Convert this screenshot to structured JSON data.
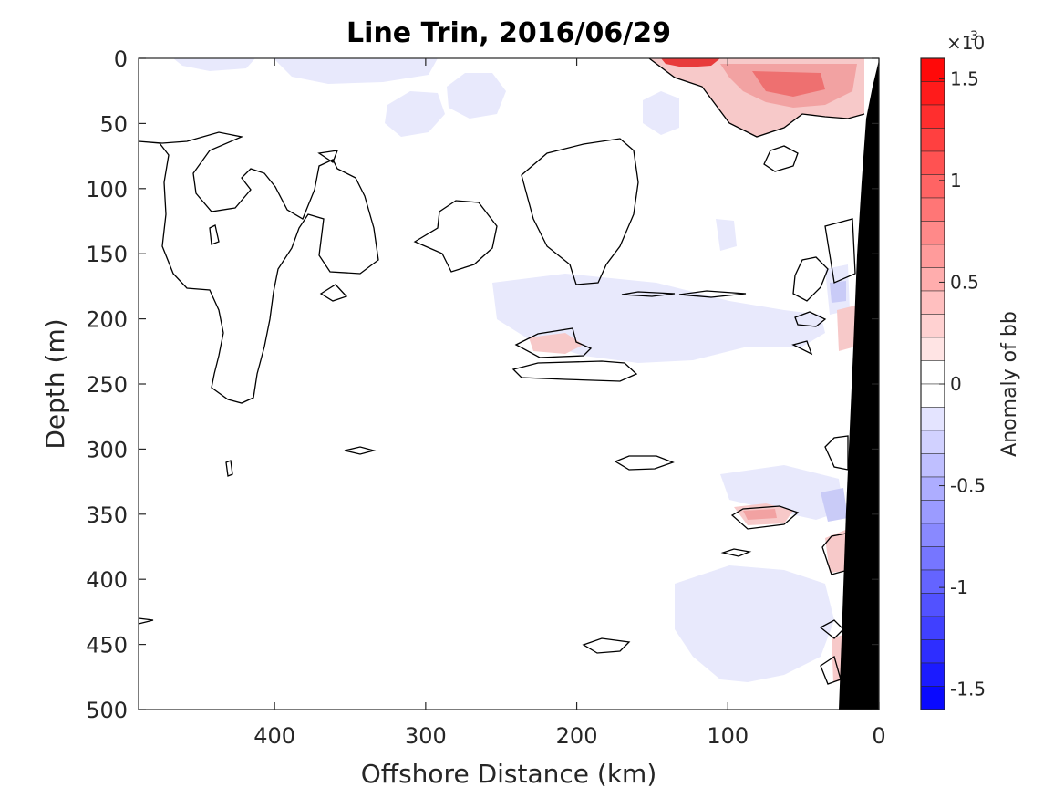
{
  "chart_data": {
    "type": "heatmap",
    "title": "Line Trin, 2016/06/29",
    "xlabel": "Offshore Distance (km)",
    "ylabel": "Depth (m)",
    "xlim": [
      490,
      0
    ],
    "ylim": [
      0,
      500
    ],
    "x_reversed": true,
    "y_reversed": true,
    "xticks": [
      400,
      300,
      200,
      100,
      0
    ],
    "yticks": [
      0,
      50,
      100,
      150,
      200,
      250,
      300,
      350,
      400,
      450,
      500
    ],
    "colorbar": {
      "label": "Anomaly of bb",
      "exponent_label": "×10",
      "exponent_power": "-3",
      "range": [
        -0.0016,
        0.0016
      ],
      "ticks": [
        1.5,
        1,
        0.5,
        0,
        -0.5,
        -1,
        -1.5
      ],
      "tick_labels": [
        "1.5",
        "1",
        "0.5",
        "0",
        "-0.5",
        "-1",
        "-1.5"
      ],
      "levels": 28,
      "colormap": "blue-white-red",
      "color_min": "#0000ff",
      "color_max": "#ff0000"
    },
    "features": {
      "bathymetry_mask": "black wedge near 0–28 km offshore",
      "contour_level": 0,
      "surface_anomaly_max_x_range_km": [
        10,
        130
      ],
      "surface_anomaly_depth_range_m": [
        0,
        50
      ]
    },
    "grid": false,
    "legend": "none"
  }
}
